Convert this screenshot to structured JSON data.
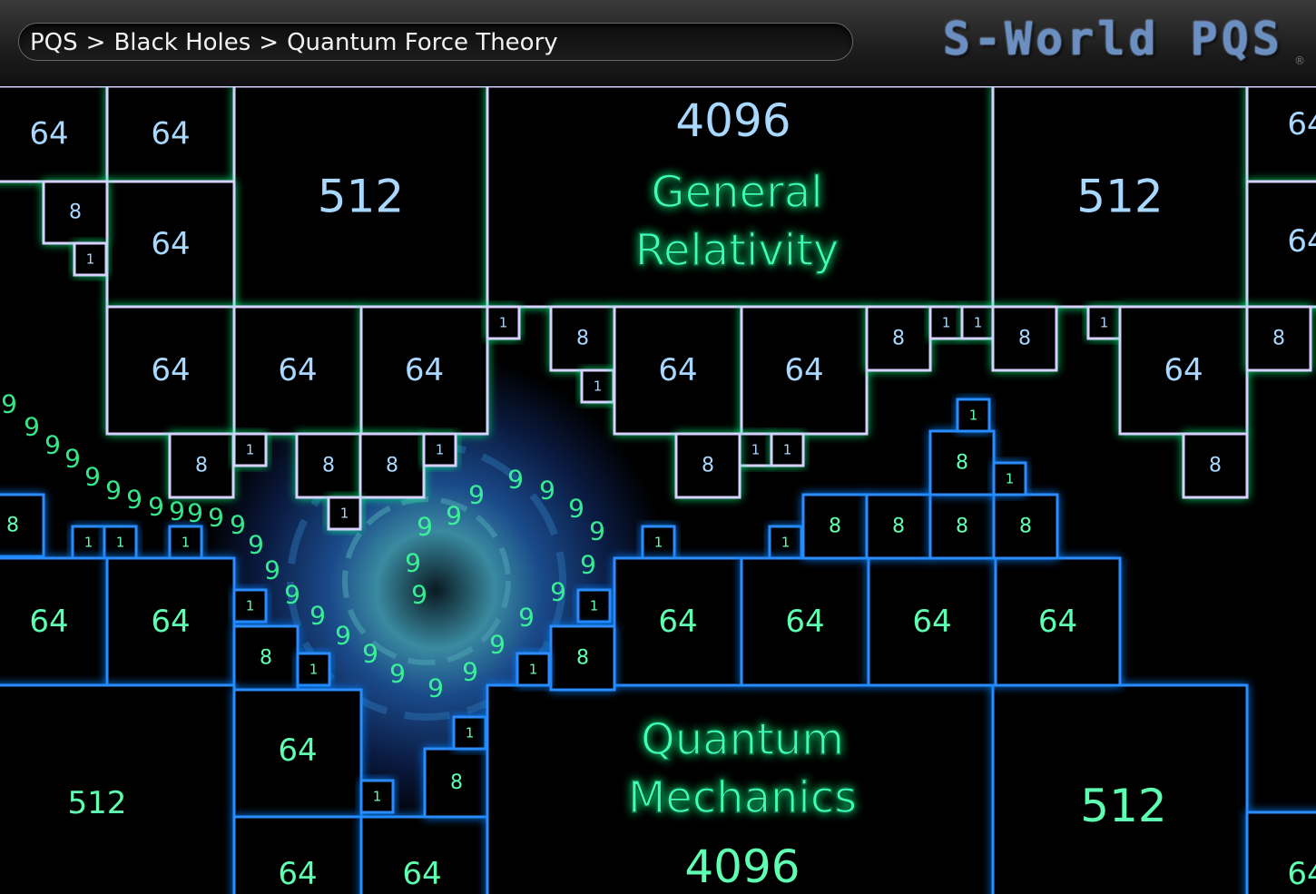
{
  "breadcrumb": {
    "items": [
      "PQS",
      "Black Holes",
      "Quantum Force Theory"
    ],
    "separator": ">"
  },
  "logo": {
    "text": "S-World PQS",
    "mark": "®"
  },
  "top_title": [
    "General",
    "Relativity"
  ],
  "bottom_title": [
    "Quantum",
    "Mechanics"
  ],
  "top_boxes": [
    "64",
    "64",
    "512",
    "4096",
    "512",
    "64",
    "64",
    "64",
    "8",
    "1",
    "64",
    "64",
    "64",
    "1",
    "8",
    "1",
    "64",
    "64",
    "8",
    "1",
    "1",
    "8",
    "1",
    "64",
    "8",
    "8",
    "1",
    "8",
    "8",
    "1",
    "1",
    "8",
    "1",
    "1",
    "8"
  ],
  "bottom_boxes": [
    "8",
    "1",
    "1",
    "1",
    "64",
    "64",
    "1",
    "8",
    "1",
    "512",
    "64",
    "64",
    "64",
    "1",
    "8",
    "1",
    "4096",
    "512",
    "64",
    "1",
    "1",
    "64",
    "64",
    "64",
    "64",
    "8",
    "8",
    "8",
    "8",
    "8",
    "1",
    "1",
    "1",
    "8",
    "1"
  ],
  "spiral_digits": [
    "9",
    "9",
    "9",
    "9",
    "9",
    "9",
    "9",
    "9",
    "9",
    "9",
    "9",
    "9",
    "9",
    "9",
    "9",
    "9",
    "9",
    "9",
    "9",
    "9",
    "9",
    "9",
    "9",
    "9",
    "9",
    "9",
    "9",
    "9",
    "9",
    "9",
    "9",
    "9",
    "9",
    "9"
  ]
}
